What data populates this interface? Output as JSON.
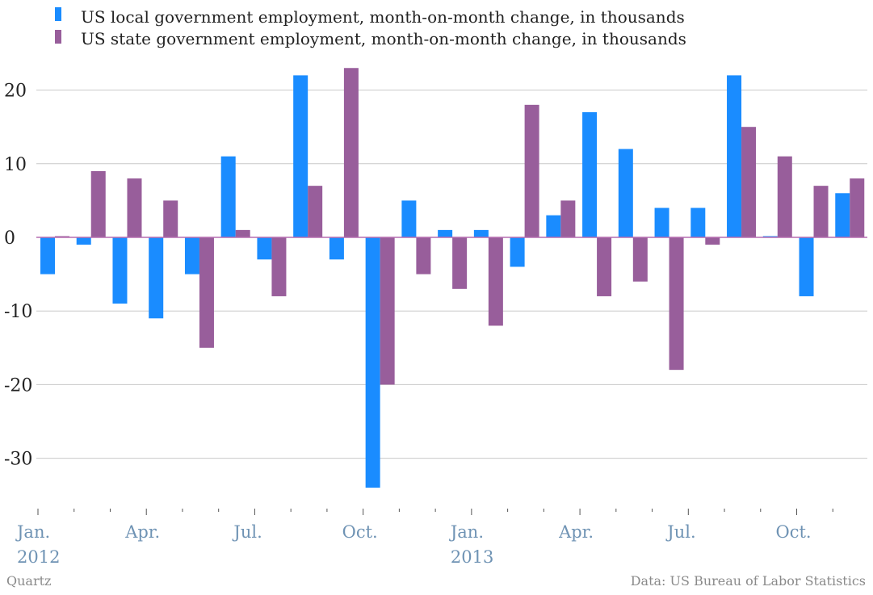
{
  "chart_data": {
    "type": "bar",
    "colors": {
      "local": "#1a8cff",
      "state": "#985e9b",
      "grid": "#c8c8c8",
      "zero": "#b56db0",
      "axis_label": "#6f93b4"
    },
    "categories": [
      "Jan. 2012",
      "Feb. 2012",
      "Mar. 2012",
      "Apr. 2012",
      "May 2012",
      "Jun. 2012",
      "Jul. 2012",
      "Aug. 2012",
      "Sep. 2012",
      "Oct. 2012",
      "Nov. 2012",
      "Dec. 2012",
      "Jan. 2013",
      "Feb. 2013",
      "Mar. 2013",
      "Apr. 2013",
      "May 2013",
      "Jun. 2013",
      "Jul. 2013",
      "Aug. 2013",
      "Sep. 2013",
      "Oct. 2013",
      "Nov. 2013"
    ],
    "series": [
      {
        "name": "US local government employment, month-on-month change, in thousands",
        "values": [
          -5,
          -1,
          -9,
          -11,
          -5,
          11,
          -3,
          22,
          -3,
          -34,
          5,
          1,
          1,
          -4,
          3,
          17,
          12,
          4,
          4,
          22,
          0,
          -8,
          6
        ]
      },
      {
        "name": "US state government employment, month-on-month change, in thousands",
        "values": [
          0,
          9,
          8,
          5,
          -15,
          1,
          -8,
          7,
          23,
          -20,
          -5,
          -7,
          -12,
          18,
          5,
          -8,
          -6,
          -18,
          -1,
          15,
          11,
          7,
          8
        ]
      }
    ],
    "y_ticks": [
      "20",
      "10",
      "0",
      "-10",
      "-20",
      "-30"
    ],
    "y_tick_values": [
      20,
      10,
      0,
      -10,
      -20,
      -30
    ],
    "ylim": [
      -37,
      25
    ],
    "x_tick_labels": [
      {
        "index": 0,
        "line1": "Jan.",
        "line2": "2012"
      },
      {
        "index": 3,
        "line1": "Apr.",
        "line2": ""
      },
      {
        "index": 6,
        "line1": "Jul.",
        "line2": ""
      },
      {
        "index": 9,
        "line1": "Oct.",
        "line2": ""
      },
      {
        "index": 12,
        "line1": "Jan.",
        "line2": "2013"
      },
      {
        "index": 15,
        "line1": "Apr.",
        "line2": ""
      },
      {
        "index": 18,
        "line1": "Jul.",
        "line2": ""
      },
      {
        "index": 21,
        "line1": "Oct.",
        "line2": ""
      }
    ],
    "grid": true,
    "legend_position": "top-left"
  },
  "footer": {
    "source_left": "Quartz",
    "source_right": "Data: US Bureau of Labor Statistics"
  }
}
